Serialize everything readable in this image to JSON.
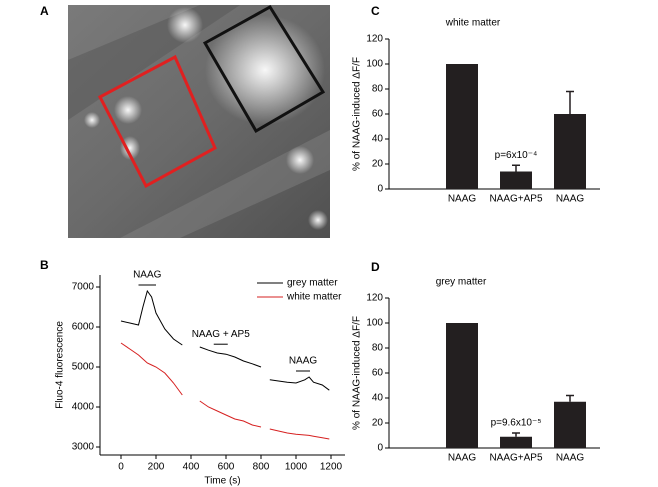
{
  "image_panel": {
    "label": "A"
  },
  "chart_data": [
    {
      "type": "line",
      "panel_label": "B",
      "xlabel": "Time (s)",
      "ylabel": "Fluo-4 fluorescence",
      "x": [
        0,
        50,
        100,
        125,
        150,
        175,
        200,
        250,
        300,
        350,
        400,
        450,
        500,
        550,
        600,
        650,
        700,
        750,
        800,
        825,
        850,
        900,
        950,
        1000,
        1050,
        1075,
        1100,
        1150,
        1190
      ],
      "series": [
        {
          "name": "grey matter",
          "color": "#000000",
          "values": [
            6150,
            6100,
            6050,
            6500,
            6900,
            6750,
            6350,
            5950,
            5700,
            5550,
            null,
            5500,
            5420,
            5350,
            5320,
            5250,
            5150,
            5080,
            5000,
            null,
            4680,
            4650,
            4620,
            4600,
            4680,
            4750,
            4620,
            4550,
            4420
          ]
        },
        {
          "name": "white matter",
          "color": "#d62020",
          "values": [
            5600,
            5450,
            5300,
            5200,
            5100,
            5050,
            5000,
            4850,
            4600,
            4300,
            null,
            4150,
            4000,
            3900,
            3800,
            3700,
            3650,
            3550,
            3500,
            null,
            3450,
            3400,
            3350,
            3320,
            3300,
            3290,
            3270,
            3230,
            3200
          ]
        }
      ],
      "annotations": [
        {
          "text": "NAAG",
          "start": 100,
          "end": 200
        },
        {
          "text": "NAAG + AP5",
          "start": 530,
          "end": 610
        },
        {
          "text": "NAAG",
          "start": 1000,
          "end": 1080
        }
      ],
      "xlim": [
        -120,
        1280
      ],
      "ylim": [
        2800,
        7300
      ],
      "xticks": [
        0,
        200,
        400,
        600,
        800,
        1000,
        1200
      ],
      "yticks": [
        3000,
        4000,
        5000,
        6000,
        7000
      ],
      "legend": "upper right"
    },
    {
      "type": "bar",
      "panel_label": "C",
      "title": "white matter",
      "ylabel": "% of NAAG-induced ΔF/F",
      "categories": [
        "NAAG",
        "NAAG+AP5",
        "NAAG"
      ],
      "values": [
        100,
        14,
        60
      ],
      "errors": [
        0,
        5,
        18
      ],
      "annotation": {
        "text": "p=6x10⁻⁴",
        "index": 1
      },
      "color": "#231f20",
      "ylim": [
        0,
        120
      ],
      "yticks": [
        0,
        20,
        40,
        60,
        80,
        100,
        120
      ]
    },
    {
      "type": "bar",
      "panel_label": "D",
      "title": "grey matter",
      "ylabel": "% of NAAG-induced ΔF/F",
      "categories": [
        "NAAG",
        "NAAG+AP5",
        "NAAG"
      ],
      "values": [
        100,
        9,
        37
      ],
      "errors": [
        0,
        3,
        5
      ],
      "annotation": {
        "text": "p=9.6x10⁻⁵",
        "index": 1
      },
      "color": "#231f20",
      "ylim": [
        0,
        120
      ],
      "yticks": [
        0,
        20,
        40,
        60,
        80,
        100,
        120
      ]
    }
  ]
}
